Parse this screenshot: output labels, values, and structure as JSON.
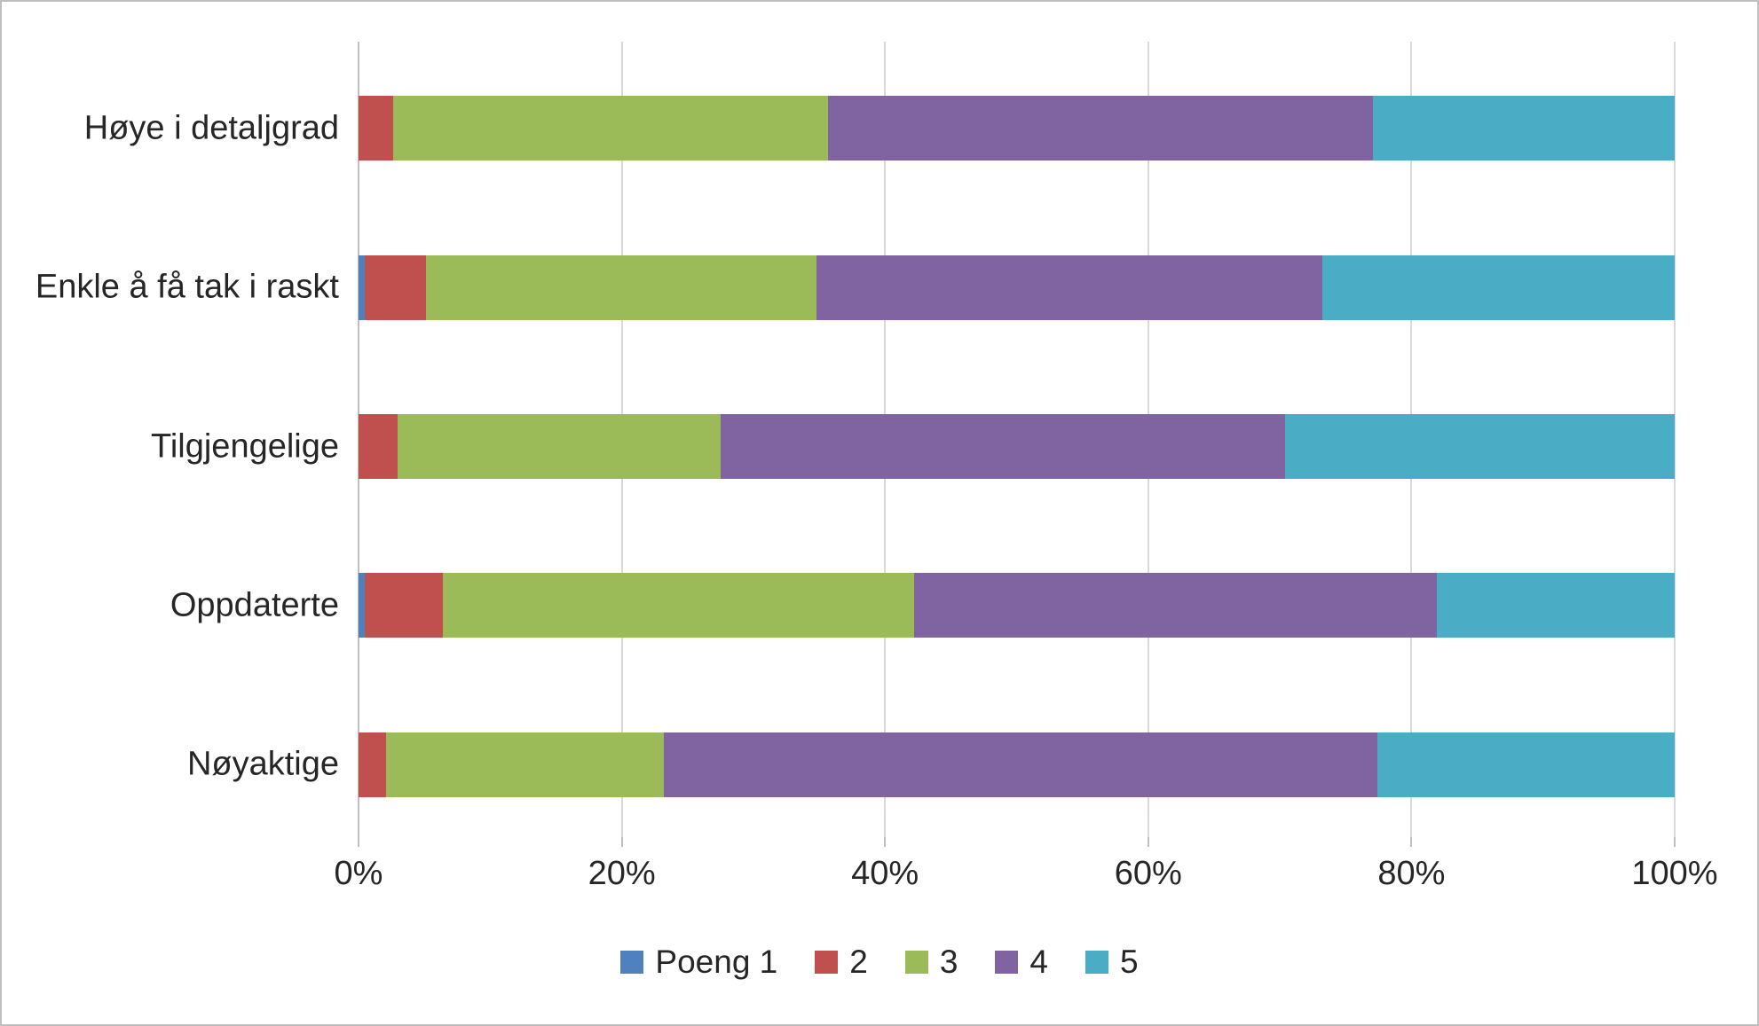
{
  "chart_data": {
    "type": "bar",
    "orientation": "horizontal",
    "stacked": true,
    "unit": "percent",
    "title": "",
    "categories": [
      "Høye i detaljgrad",
      "Enkle å få tak i raskt",
      "Tilgjengelige",
      "Oppdaterte",
      "Nøyaktige"
    ],
    "series": [
      {
        "name": "Poeng 1",
        "color": "#4F81BD",
        "values": [
          0.0,
          0.5,
          0.0,
          0.5,
          0.0
        ]
      },
      {
        "name": "2",
        "color": "#C0504D",
        "values": [
          2.6,
          4.6,
          3.0,
          5.9,
          2.1
        ]
      },
      {
        "name": "3",
        "color": "#9BBB59",
        "values": [
          33.1,
          29.7,
          24.5,
          35.8,
          21.1
        ]
      },
      {
        "name": "4",
        "color": "#8064A2",
        "values": [
          41.4,
          38.4,
          42.9,
          39.7,
          54.2
        ]
      },
      {
        "name": "5",
        "color": "#4BACC6",
        "values": [
          22.9,
          26.8,
          29.6,
          18.1,
          22.6
        ]
      }
    ],
    "x_axis": {
      "min": 0,
      "max": 100,
      "tick_labels": [
        "0%",
        "20%",
        "40%",
        "60%",
        "80%",
        "100%"
      ],
      "grid": true
    },
    "legend": {
      "position": "bottom",
      "entries": [
        "Poeng 1",
        "2",
        "3",
        "4",
        "5"
      ]
    }
  },
  "style": {
    "gridline_color": "#D9D9D9",
    "axis_color": "#BFBFBF",
    "text_color": "#262626",
    "background": "#FFFFFF",
    "border_color": "#BFBFBF"
  }
}
